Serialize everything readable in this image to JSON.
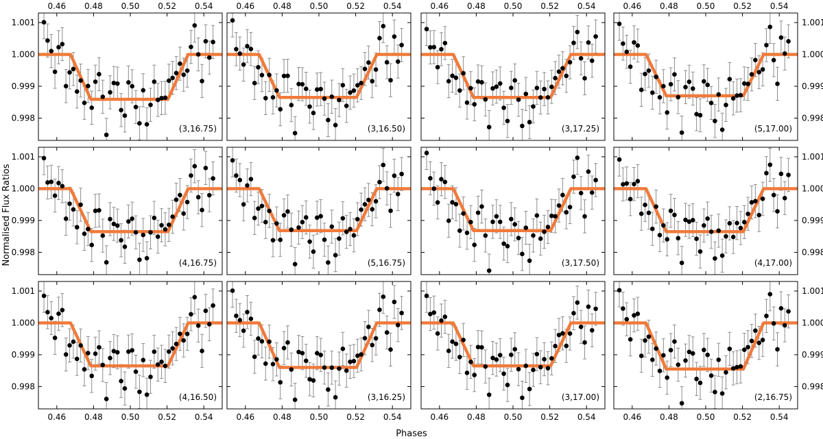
{
  "figure": {
    "ylabel": "Normalised Flux Ratios",
    "xlabel": "Phases"
  },
  "colors": {
    "model": "#f07a3a",
    "points": "#000000",
    "errorbars": "#8c8c8c",
    "frame": "#000000"
  },
  "chart_data": {
    "type": "scatter",
    "layout": "3x4 grid",
    "xlim": [
      0.45,
      0.55
    ],
    "ylim": [
      0.9973,
      1.0013
    ],
    "xticks": [
      0.46,
      0.48,
      0.5,
      0.52,
      0.54
    ],
    "xtick_labels": [
      "0.46",
      "0.48",
      "0.50",
      "0.52",
      "0.54"
    ],
    "yticks": [
      0.998,
      0.999,
      1.0,
      1.001
    ],
    "ytick_labels": [
      "0.998",
      "0.999",
      "1.000",
      "1.001"
    ],
    "obs_phase": [
      0.453,
      0.455,
      0.457,
      0.459,
      0.461,
      0.463,
      0.465,
      0.467,
      0.469,
      0.471,
      0.473,
      0.475,
      0.477,
      0.479,
      0.481,
      0.483,
      0.485,
      0.487,
      0.489,
      0.491,
      0.493,
      0.495,
      0.497,
      0.499,
      0.501,
      0.503,
      0.505,
      0.507,
      0.509,
      0.511,
      0.513,
      0.515,
      0.517,
      0.519,
      0.521,
      0.523,
      0.525,
      0.527,
      0.529,
      0.531,
      0.533,
      0.535,
      0.537,
      0.539,
      0.541,
      0.543,
      0.545
    ],
    "obs_flux": [
      1.00095,
      1.00028,
      1.00015,
      0.99962,
      1.00022,
      1.00024,
      0.99905,
      0.99945,
      0.9994,
      0.9988,
      0.99935,
      0.99855,
      0.9989,
      0.9983,
      0.9992,
      0.9993,
      0.99858,
      0.9976,
      0.99895,
      0.99902,
      0.99898,
      0.9983,
      0.99808,
      0.99902,
      0.99905,
      0.99852,
      0.99782,
      0.99872,
      0.9978,
      0.99848,
      0.99908,
      0.99855,
      0.99878,
      0.9987,
      0.99902,
      0.99918,
      0.9995,
      0.99972,
      0.9993,
      0.99958,
      1.00035,
      1.0008,
      0.99985,
      0.99922,
      1.0005,
      0.99985,
      1.0004
    ],
    "obs_err": 0.00052,
    "model": {
      "out_of_transit": 1.0,
      "ingress_start": 0.4675,
      "ingress_end": 0.4785,
      "egress_start": 0.5205,
      "egress_end": 0.5315
    },
    "panels": [
      {
        "label": "(3,16.75)",
        "depth": 0.00141,
        "offset": 0
      },
      {
        "label": "(3,16.50)",
        "depth": 0.00135,
        "offset": 1
      },
      {
        "label": "(3,17.25)",
        "depth": 0.00135,
        "offset": 2
      },
      {
        "label": "(5,17.00)",
        "depth": 0.0013,
        "offset": 3
      },
      {
        "label": "(4,16.75)",
        "depth": 0.00135,
        "offset": 4
      },
      {
        "label": "(5,16.75)",
        "depth": 0.00132,
        "offset": 5
      },
      {
        "label": "(3,17.50)",
        "depth": 0.00132,
        "offset": 6
      },
      {
        "label": "(4,17.00)",
        "depth": 0.00135,
        "offset": 7
      },
      {
        "label": "(4,16.50)",
        "depth": 0.00135,
        "offset": 8
      },
      {
        "label": "(3,16.25)",
        "depth": 0.0014,
        "offset": 9
      },
      {
        "label": "(3,17.00)",
        "depth": 0.00135,
        "offset": 10
      },
      {
        "label": "(2,16.75)",
        "depth": 0.00145,
        "offset": 11
      }
    ]
  }
}
